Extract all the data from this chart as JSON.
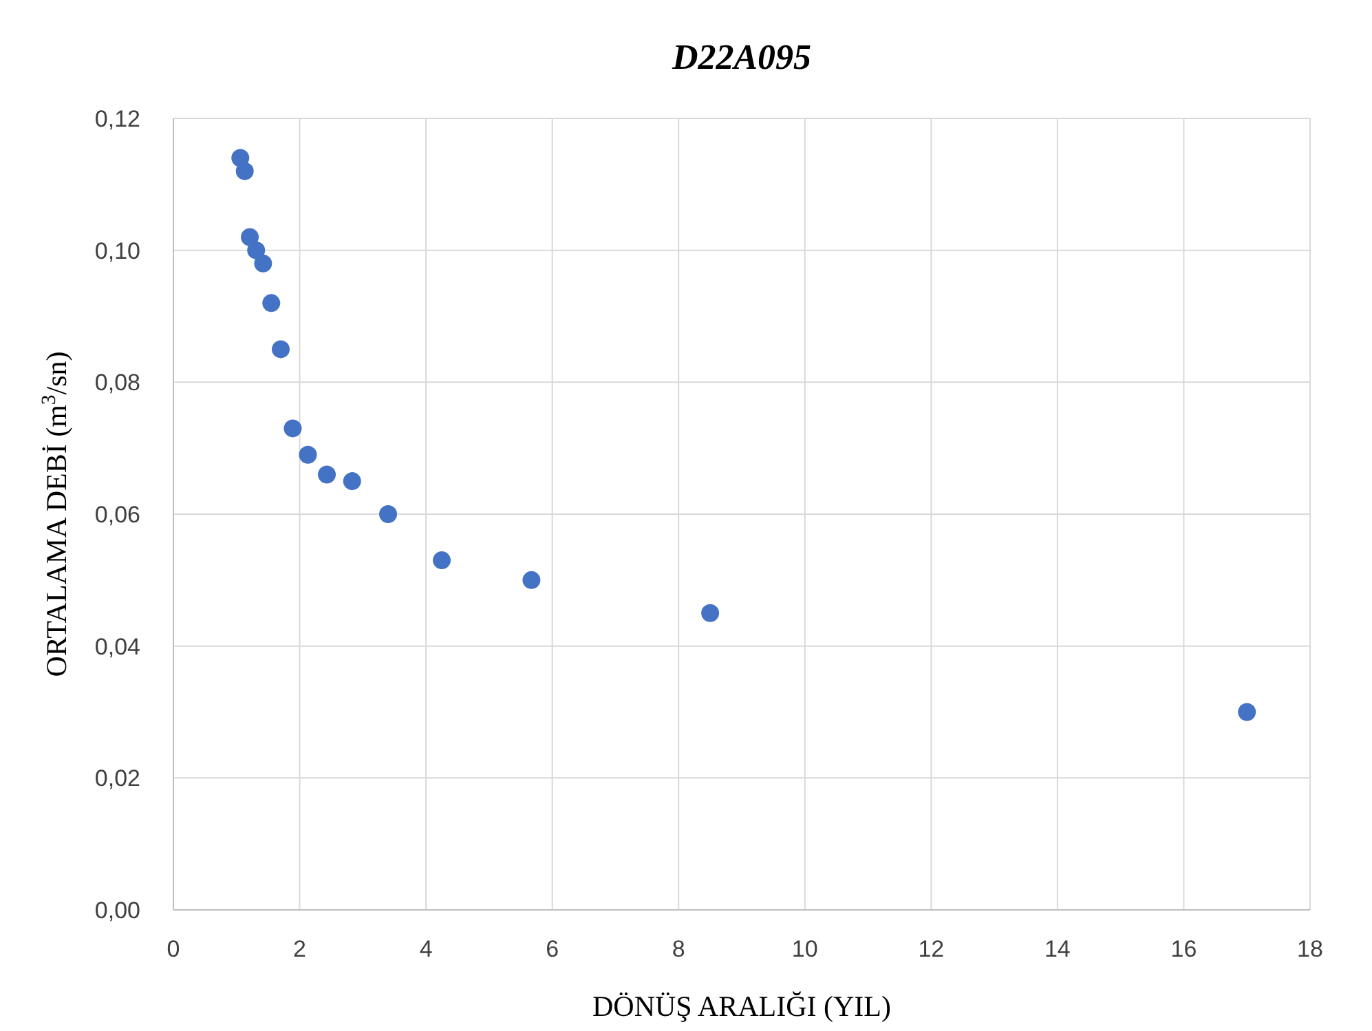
{
  "chart_data": {
    "type": "scatter",
    "title": "D22A095",
    "xlabel": "DÖNÜŞ ARALIĞI (YIL)",
    "ylabel": "ORTALAMA DEBİ (m$^{3}$/sn)",
    "x": [
      1.06,
      1.13,
      1.21,
      1.31,
      1.42,
      1.55,
      1.7,
      1.89,
      2.13,
      2.43,
      2.83,
      3.4,
      4.25,
      5.67,
      8.5,
      17
    ],
    "series": [
      {
        "color": "#4472c4",
        "values": [
          0.114,
          0.112,
          0.102,
          0.1,
          0.098,
          0.092,
          0.085,
          0.073,
          0.069,
          0.066,
          0.065,
          0.06,
          0.053,
          0.05,
          0.045,
          0.03
        ]
      }
    ],
    "xlim": [
      0,
      18
    ],
    "xticks": [
      0,
      2,
      4,
      6,
      8,
      10,
      12,
      14,
      16,
      18
    ],
    "ylim": [
      0,
      0.12
    ],
    "yticks": [
      {
        "value": 0,
        "label": "0,00"
      },
      {
        "value": 0.02,
        "label": "0,02"
      },
      {
        "value": 0.04,
        "label": "0,04"
      },
      {
        "value": 0.06,
        "label": "0,06"
      },
      {
        "value": 0.08,
        "label": "0,08"
      },
      {
        "value": 0.1,
        "label": "0,10"
      },
      {
        "value": 0.12,
        "label": "0,12"
      }
    ],
    "grid": true,
    "marker": "circle"
  }
}
